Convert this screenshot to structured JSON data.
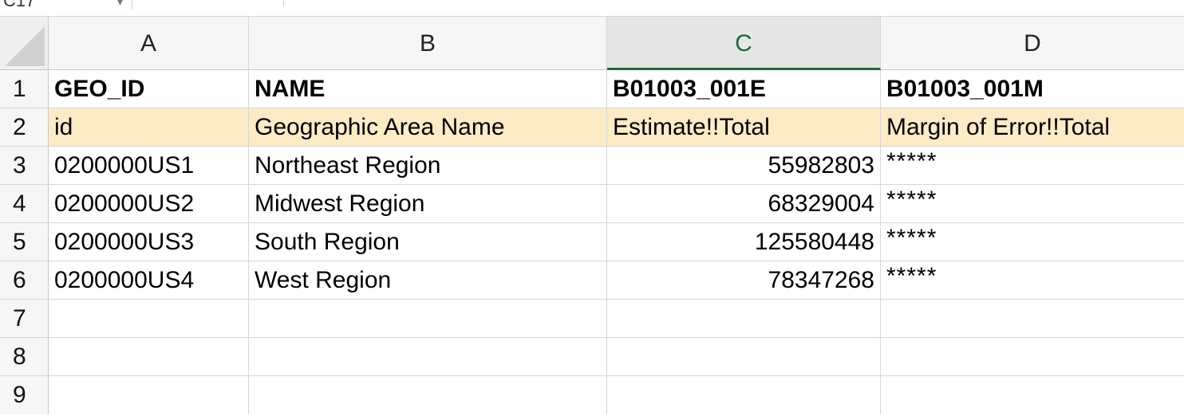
{
  "name_box": {
    "ref": "C17"
  },
  "columns": [
    "A",
    "B",
    "C",
    "D"
  ],
  "active_column": "C",
  "rows": [
    "1",
    "2",
    "3",
    "4",
    "5",
    "6",
    "7",
    "8",
    "9"
  ],
  "cells": {
    "A1": "GEO_ID",
    "B1": "NAME",
    "C1": "B01003_001E",
    "D1": "B01003_001M",
    "A2": "id",
    "B2": "Geographic Area Name",
    "C2": "Estimate!!Total",
    "D2": "Margin of Error!!Total",
    "A3": "0200000US1",
    "B3": "Northeast Region",
    "C3": "55982803",
    "D3": "*****",
    "A4": "0200000US2",
    "B4": "Midwest Region",
    "C4": "68329004",
    "D4": "*****",
    "A5": "0200000US3",
    "B5": "South Region",
    "C5": "125580448",
    "D5": "*****",
    "A6": "0200000US4",
    "B6": "West Region",
    "C6": "78347268",
    "D6": "*****"
  },
  "colors": {
    "highlight_row": "#fdebc6",
    "active_header": "#1e6b3d"
  }
}
